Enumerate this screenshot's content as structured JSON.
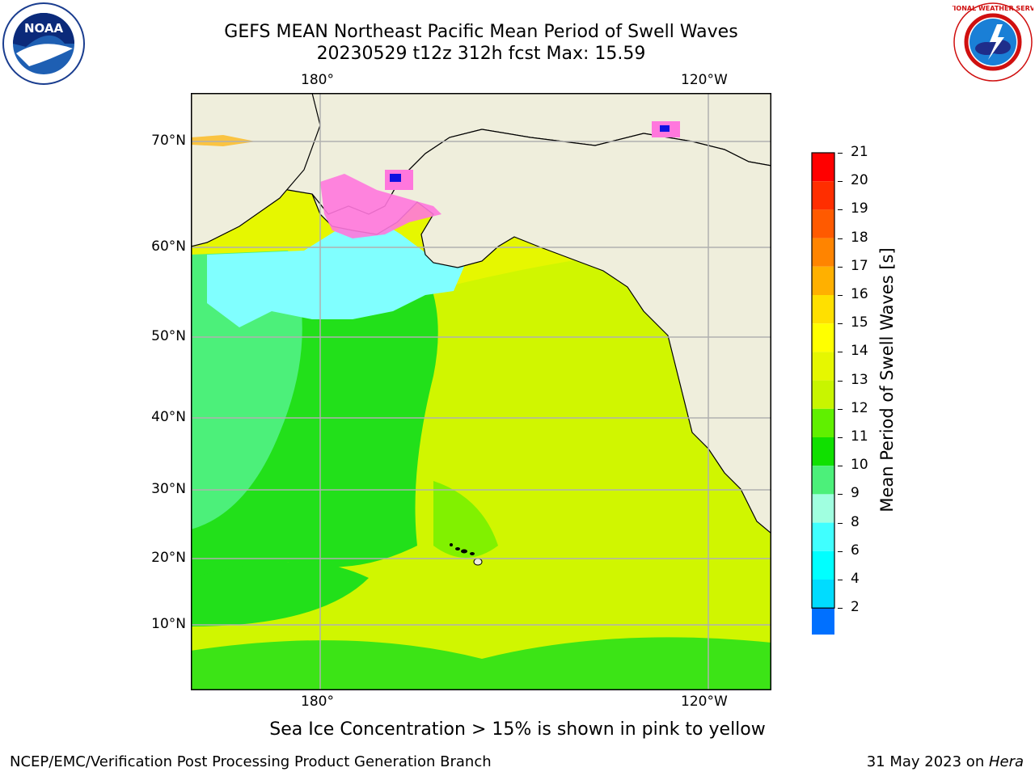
{
  "header": {
    "title_line1": "GEFS MEAN Northeast Pacific Mean Period of Swell Waves",
    "title_line2": "20230529 t12z 312h fcst   Max: 15.59"
  },
  "logos": {
    "left": {
      "icon": "noaa-logo-icon",
      "text": "NOAA"
    },
    "right": {
      "icon": "national-weather-service-logo-icon",
      "text": "NATIONAL WEATHER SERVICE"
    }
  },
  "map": {
    "lon_labels_top": [
      "180°",
      "120°W"
    ],
    "lon_labels_bottom": [
      "180°",
      "120°W"
    ],
    "lat_labels": [
      "70°N",
      "60°N",
      "50°N",
      "40°N",
      "30°N",
      "20°N",
      "10°N"
    ],
    "colors": {
      "land": "#efeedc",
      "ocean_green": "#22e01a",
      "ocean_light_green": "#4cf07a",
      "ocean_yellow_green": "#c8f500",
      "ocean_yellow": "#e6f700",
      "sea_ice_pink": "#ff77dd",
      "cyan": "#80ffff",
      "grid": "#b0b0b0"
    }
  },
  "colorbar": {
    "title": "Mean Period of Swell Waves [s]",
    "levels": [
      "21",
      "20",
      "19",
      "18",
      "17",
      "16",
      "15",
      "14",
      "13",
      "12",
      "11",
      "10",
      "9",
      "8",
      "6",
      "4",
      "2"
    ],
    "colors": [
      "#ff0000",
      "#ff2e00",
      "#ff5a00",
      "#ff8400",
      "#ffb000",
      "#ffe000",
      "#ffff00",
      "#e6f700",
      "#c8f500",
      "#60f000",
      "#10e000",
      "#4cf07a",
      "#a0ffe0",
      "#40ffff",
      "#00ffff",
      "#00dcff",
      "#0070ff"
    ],
    "extend_color": "#0000e8"
  },
  "caption": "Sea Ice Concentration > 15% is shown in pink to yellow",
  "footer": {
    "left": "NCEP/EMC/Verification Post Processing Product Generation Branch",
    "right_prefix": "31 May 2023 on ",
    "right_host": "Hera"
  }
}
